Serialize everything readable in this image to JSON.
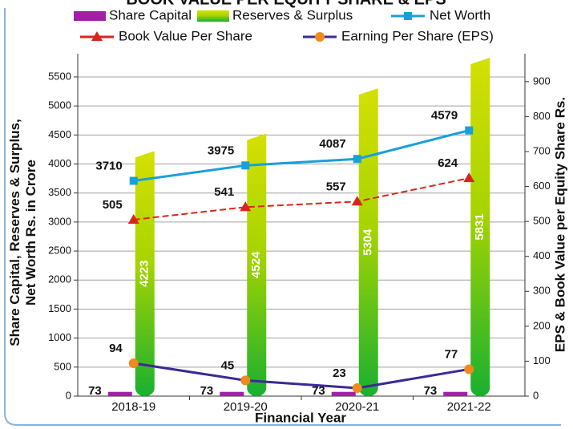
{
  "chart_data": {
    "type": "bar_line",
    "title": "BOOK VALUE PER EQUITY SHARE & EPS",
    "categories": [
      "2018-19",
      "2019-20",
      "2020-21",
      "2021-22"
    ],
    "xlabel": "Financial Year",
    "ylabel": "Share Capital, Reserves & Surplus, Net Worth Rs. in Crore",
    "y2label": "EPS & Book Value per Equity Share Rs.",
    "ylim": [
      0,
      5900
    ],
    "yticks": [
      0,
      500,
      1000,
      1500,
      2000,
      2500,
      3000,
      3500,
      4000,
      4500,
      5000,
      5500
    ],
    "y2lim": [
      0,
      980
    ],
    "y2ticks": [
      0,
      100,
      200,
      300,
      400,
      500,
      600,
      700,
      800,
      900
    ],
    "series": [
      {
        "name": "Share Capital",
        "kind": "bar",
        "color": "#a21fa8",
        "values": [
          73,
          73,
          73,
          73
        ]
      },
      {
        "name": "Reserves & Surplus",
        "kind": "cylinder",
        "color": "#19b030",
        "values": [
          4223,
          4524,
          5304,
          5831
        ]
      },
      {
        "name": "Net Worth",
        "kind": "line",
        "marker": "square",
        "color": "#1aa0d8",
        "values": [
          3710,
          3975,
          4087,
          4579
        ]
      },
      {
        "name": "Book Value Per Share",
        "kind": "line",
        "marker": "triangle",
        "dashed": true,
        "color": "#d9261c",
        "axis": "y2",
        "values": [
          505,
          541,
          557,
          624
        ]
      },
      {
        "name": "Earning Per Share (EPS)",
        "kind": "line",
        "marker": "circle",
        "color": "#3b2a96",
        "marker_color": "#f08a1c",
        "axis": "y2",
        "values": [
          94,
          45,
          23,
          77
        ]
      }
    ]
  }
}
